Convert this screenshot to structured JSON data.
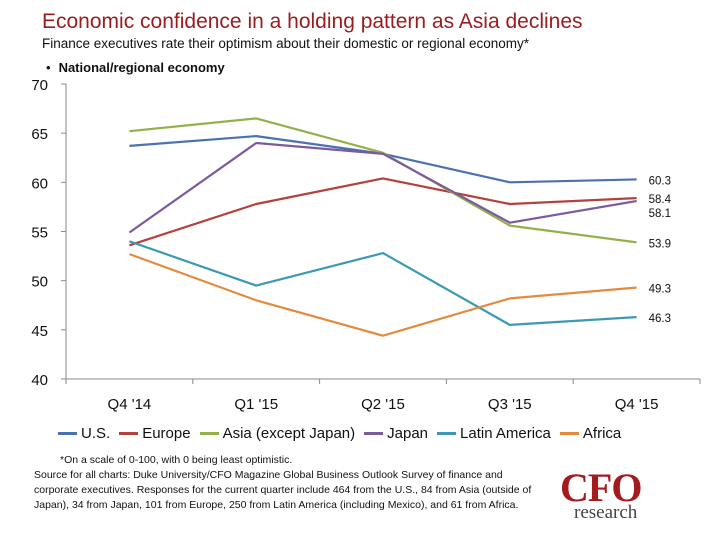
{
  "header": {
    "title": "Economic confidence in a holding pattern as Asia declines",
    "subtitle": "Finance executives rate their optimism about their domestic or regional economy*",
    "bullet": "National/regional economy"
  },
  "chart_data": {
    "type": "line",
    "title": "Economic confidence in a holding pattern as Asia declines",
    "xlabel": "",
    "ylabel": "",
    "categories": [
      "Q4 '14",
      "Q1 '15",
      "Q2 '15",
      "Q3 '15",
      "Q4 '15"
    ],
    "ylim": [
      40,
      70
    ],
    "yticks": [
      40,
      45,
      50,
      55,
      60,
      65,
      70
    ],
    "legend_position": "bottom",
    "series": [
      {
        "name": "U.S.",
        "color": "#4a72b0",
        "values": [
          63.7,
          64.7,
          62.9,
          60.0,
          60.3
        ],
        "end_label": "60.3"
      },
      {
        "name": "Europe",
        "color": "#b4413c",
        "values": [
          53.6,
          57.8,
          60.4,
          57.8,
          58.4
        ],
        "end_label": "58.4"
      },
      {
        "name": "Asia (except Japan)",
        "color": "#93b04b",
        "values": [
          65.2,
          66.5,
          63.0,
          55.6,
          53.9
        ],
        "end_label": "53.9"
      },
      {
        "name": "Japan",
        "color": "#7b5aa0",
        "values": [
          54.9,
          64.0,
          62.9,
          55.9,
          58.1
        ],
        "end_label": "58.1"
      },
      {
        "name": "Latin America",
        "color": "#3d99b3",
        "values": [
          54.0,
          49.5,
          52.8,
          45.5,
          46.3
        ],
        "end_label": "46.3"
      },
      {
        "name": "Africa",
        "color": "#e38b3e",
        "values": [
          52.7,
          48.0,
          44.4,
          48.2,
          49.3
        ],
        "end_label": "49.3"
      }
    ]
  },
  "footnote": {
    "scale_note": "*On a scale of 0-100, with 0 being least optimistic.",
    "source": "Source for all charts: Duke University/CFO Magazine Global Business Outlook Survey of finance and corporate executives. Responses for the current quarter include 464 from the U.S., 84 from Asia (outside of Japan), 34 from Japan, 101 from Europe, 250 from Latin America (including Mexico), and 61 from Africa."
  },
  "logo": {
    "word": "CFO",
    "sub": "research"
  }
}
